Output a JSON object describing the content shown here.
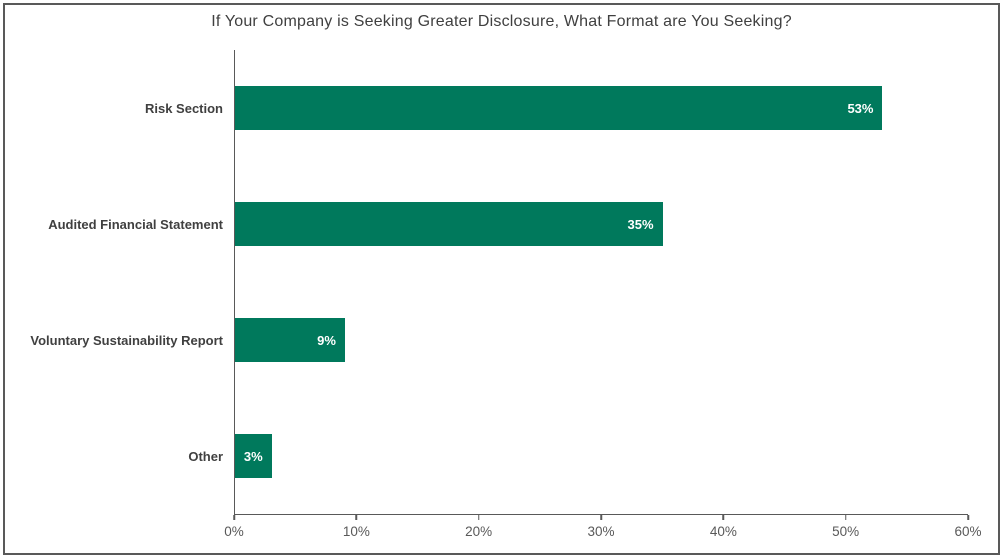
{
  "title": "If Your Company is Seeking Greater Disclosure, What Format are You Seeking?",
  "chart_data": {
    "type": "bar",
    "orientation": "horizontal",
    "title": "If Your Company is Seeking Greater Disclosure, What Format are You Seeking?",
    "categories": [
      "Risk Section",
      "Audited Financial Statement",
      "Voluntary Sustainability Report",
      "Other"
    ],
    "values": [
      53,
      35,
      9,
      3
    ],
    "value_labels": [
      "53%",
      "35%",
      "9%",
      "3%"
    ],
    "xlabel": "",
    "ylabel": "",
    "xlim": [
      0,
      60
    ],
    "xticks": [
      0,
      10,
      20,
      30,
      40,
      50,
      60
    ],
    "xtick_labels": [
      "0%",
      "10%",
      "20%",
      "30%",
      "40%",
      "50%",
      "60%"
    ],
    "grid": false,
    "legend": false,
    "bar_color": "#00795C",
    "value_label_color": "#ffffff",
    "axis_color": "#595959",
    "text_color": "#404040"
  }
}
